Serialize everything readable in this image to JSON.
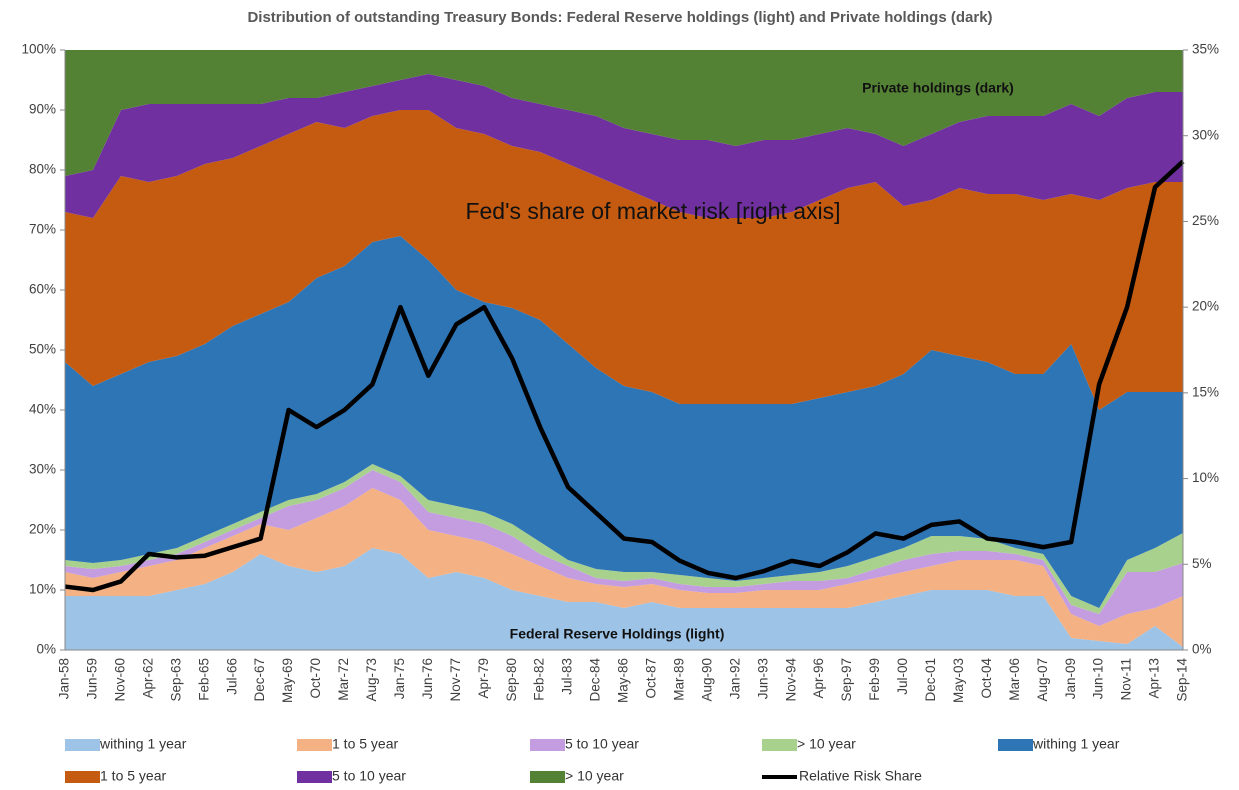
{
  "chart_data": {
    "type": "area",
    "title": "Distribution of outstanding Treasury Bonds: Federal Reserve holdings (light) and Private holdings (dark)",
    "annotations": [
      "Private holdings (dark)",
      "Fed's share of market risk  [right axis]",
      "Federal Reserve Holdings (light)"
    ],
    "stacked": true,
    "categories": [
      "Jan-58",
      "Jun-59",
      "Nov-60",
      "Apr-62",
      "Sep-63",
      "Feb-65",
      "Jul-66",
      "Dec-67",
      "May-69",
      "Oct-70",
      "Mar-72",
      "Aug-73",
      "Jan-75",
      "Jun-76",
      "Nov-77",
      "Apr-79",
      "Sep-80",
      "Feb-82",
      "Jul-83",
      "Dec-84",
      "May-86",
      "Oct-87",
      "Mar-89",
      "Aug-90",
      "Jan-92",
      "Jun-93",
      "Nov-94",
      "Apr-96",
      "Sep-97",
      "Feb-99",
      "Jul-00",
      "Dec-01",
      "May-03",
      "Oct-04",
      "Mar-06",
      "Aug-07",
      "Jan-09",
      "Jun-10",
      "Nov-11",
      "Apr-13",
      "Sep-14"
    ],
    "ylim": [
      0,
      100
    ],
    "yticks": [
      {
        "value": 0,
        "label": "0%"
      },
      {
        "value": 10,
        "label": "10%"
      },
      {
        "value": 20,
        "label": "20%"
      },
      {
        "value": 30,
        "label": "30%"
      },
      {
        "value": 40,
        "label": "40%"
      },
      {
        "value": 50,
        "label": "50%"
      },
      {
        "value": 60,
        "label": "60%"
      },
      {
        "value": 70,
        "label": "70%"
      },
      {
        "value": 80,
        "label": "80%"
      },
      {
        "value": 90,
        "label": "90%"
      },
      {
        "value": 100,
        "label": "100%"
      }
    ],
    "y2lim": [
      0,
      35
    ],
    "y2ticks": [
      {
        "value": 0,
        "label": "0%"
      },
      {
        "value": 5,
        "label": "5%"
      },
      {
        "value": 10,
        "label": "10%"
      },
      {
        "value": 15,
        "label": "15%"
      },
      {
        "value": 20,
        "label": "20%"
      },
      {
        "value": 25,
        "label": "25%"
      },
      {
        "value": 30,
        "label": "30%"
      },
      {
        "value": 35,
        "label": "35%"
      }
    ],
    "legend": "bottom",
    "series": [
      {
        "name": "withing 1 year",
        "color": "#9dc3e6",
        "values": [
          9,
          9,
          9,
          9,
          10,
          11,
          13,
          16,
          14,
          13,
          14,
          17,
          16,
          12,
          13,
          12,
          10,
          9,
          8,
          8,
          7,
          8,
          7,
          7,
          7,
          7,
          7,
          7,
          7,
          8,
          9,
          10,
          10,
          10,
          9,
          9,
          2,
          1.5,
          1,
          4,
          0.5
        ]
      },
      {
        "name": "1 to 5 year",
        "color": "#f4b183",
        "values": [
          4,
          3,
          4,
          5,
          5,
          6,
          6,
          5,
          6,
          9,
          10,
          10,
          9,
          8,
          6,
          6,
          6,
          5,
          4,
          3,
          3.5,
          3,
          3,
          2.5,
          2.5,
          3,
          3,
          3,
          4,
          4,
          4,
          4,
          5,
          5,
          6,
          5,
          4,
          2.5,
          5,
          3,
          8.5
        ]
      },
      {
        "name": "5 to 10 year",
        "color": "#c39ddf",
        "values": [
          1,
          1.5,
          1,
          1,
          1,
          1,
          1,
          1,
          4,
          3,
          3,
          3,
          3,
          3,
          3,
          3,
          3,
          2,
          2,
          1,
          1,
          1,
          1,
          1,
          1,
          1,
          1.5,
          1.5,
          1,
          1.5,
          2,
          2,
          1.5,
          1.5,
          1,
          1,
          1.5,
          2,
          7,
          6,
          5.5
        ]
      },
      {
        "name": "> 10 year",
        "color": "#a9d18e",
        "values": [
          1,
          1,
          1,
          1,
          1,
          1,
          1,
          1,
          1,
          1,
          1,
          1,
          1,
          2,
          2,
          2,
          2,
          2,
          1,
          1.5,
          1.5,
          1,
          1.5,
          1.5,
          1,
          1,
          1,
          1.5,
          2,
          2,
          2,
          3,
          2.5,
          2,
          1,
          1,
          1.5,
          1,
          2,
          4,
          5
        ]
      },
      {
        "name": "withing 1 year",
        "color": "#2e75b6",
        "values": [
          33,
          29.5,
          31,
          32,
          32,
          32,
          33,
          33,
          33,
          36,
          36,
          37,
          40,
          40,
          36,
          35,
          36,
          37,
          36,
          33.5,
          31,
          30,
          28.5,
          29,
          29.5,
          29,
          28.5,
          29,
          29,
          28.5,
          29,
          31,
          30,
          29.5,
          29,
          30,
          42,
          33,
          28,
          26,
          23.5
        ]
      },
      {
        "name": "1 to 5 year",
        "color": "#c55a11",
        "values": [
          25,
          28,
          33,
          30,
          30,
          30,
          28,
          28,
          28,
          26,
          23,
          21,
          21,
          25,
          27,
          28,
          27,
          28,
          30,
          32,
          33,
          32,
          32,
          31,
          31,
          31,
          32,
          33,
          34,
          34,
          28,
          25,
          28,
          28,
          30,
          29,
          25,
          35,
          34,
          35,
          35
        ]
      },
      {
        "name": "5 to 10 year",
        "color": "#7030a0",
        "values": [
          6,
          8,
          11,
          13,
          12,
          10,
          9,
          7,
          6,
          4,
          6,
          5,
          5,
          6,
          8,
          8,
          8,
          8,
          9,
          10,
          10,
          11,
          12,
          13,
          12,
          13,
          12,
          11,
          10,
          8,
          10,
          11,
          11,
          13,
          13,
          14,
          15,
          14,
          15,
          15,
          15
        ]
      },
      {
        "name": "> 10 year",
        "color": "#548235",
        "values": [
          21,
          20,
          10,
          9,
          9,
          9,
          9,
          9,
          8,
          8,
          7,
          6,
          5,
          4,
          5,
          6,
          8,
          9,
          10,
          11,
          13,
          14,
          15,
          15,
          16,
          15,
          15,
          14,
          13,
          14,
          16,
          14,
          12,
          11,
          11,
          11,
          9,
          11,
          8,
          7,
          7
        ]
      },
      {
        "name": "Relative Risk Share",
        "type": "line",
        "axis": "y2",
        "color": "#000000",
        "values": [
          3.7,
          3.5,
          4,
          5.6,
          5.4,
          5.5,
          6,
          6.5,
          14,
          13,
          14,
          15.5,
          20,
          16,
          19,
          20,
          17,
          13,
          9.5,
          8,
          6.5,
          6.3,
          5.2,
          4.5,
          4.2,
          4.6,
          5.2,
          4.9,
          5.7,
          6.8,
          6.5,
          7.3,
          7.5,
          6.5,
          6.3,
          6,
          6.3,
          15.5,
          20,
          27,
          28.5
        ]
      }
    ]
  }
}
